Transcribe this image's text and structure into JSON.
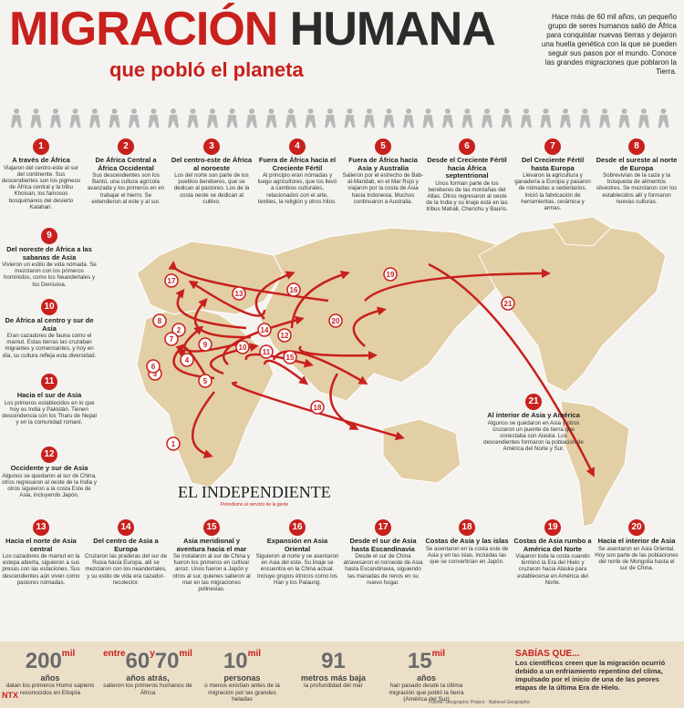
{
  "header": {
    "title_1": "MIGRACIÓN",
    "title_2": "HUMANA",
    "subtitle": "que pobló el planeta",
    "intro": "Hace más de 60 mil años, un pequeño grupo de seres humanos salió de África para conquistar nuevas tierras y dejaron una huella genética con la que se pueden seguir sus pasos por el mundo. Conoce las grandes migraciones que poblaron la Tierra."
  },
  "routes": [
    {
      "number": "1",
      "title": "A través de África",
      "text": "Viajaron del centro-este al sur del continente. Sus descendientes son los pigmeos de África central y la tribu Khoisan, los famosos bosquimanos del desierto Kalahari."
    },
    {
      "number": "2",
      "title": "De África Central a África Occidental",
      "text": "Sus descendientes son los Bantú, una cultura agrícola avanzada y los primeros en en trabajar el hierro. Se extendieron al este y al sur."
    },
    {
      "number": "3",
      "title": "Del centro-este de África al noroeste",
      "text": "Los del norte son parte de los pueblos bereberes, que se dedican al pastoreo. Los de la costa oeste se dedican al cultivo."
    },
    {
      "number": "4",
      "title": "Fuera de África hacia el Creciente Fértil",
      "text": "Al principio eran nómadas y luego agricultores, que los llevó a cambios culturales, relacionados con el arte, textiles, la religión y otros hitos."
    },
    {
      "number": "5",
      "title": "Fuera de África hacia Asia y Australia",
      "text": "Salieron por el estrecho de Bab-al-Mandab, en el Mar Rojo y viajaron por la costa de Asia hacia Indonesia. Muchos continuaron a Australia."
    },
    {
      "number": "6",
      "title": "Desde el Creciente Fértil hacia África septentrional",
      "text": "Unos forman parte de los bereberes de las montañas del Atlas. Otros regresaron al oeste de la India y su linaje está en las tribus Mahali, Chenchu y Bauris."
    },
    {
      "number": "7",
      "title": "Del Creciente Fértil hasta Europa",
      "text": "Llevaron la agricultura y ganadería a Europa y pasaron de nómadas a sedentarios. Inició la fabricación de herramientas, cerámica y armas."
    },
    {
      "number": "8",
      "title": "Desde el sureste al norte de Europa",
      "text": "Sobrevivían de la caza y la búsqueda de alimentos silvestres. Se mezclaron con los establecidos allí y formaron nuevas culturas."
    },
    {
      "number": "9",
      "title": "Del noreste de África a las sabanas de Asia",
      "text": "Vivieron un estilo de vida nómada. Se mezclaron con los primeros homínidos, como los Neandertales y los Denisova."
    },
    {
      "number": "10",
      "title": "De África al centro y sur de Asia",
      "text": "Eran cazadores de fauna como el mamut. Estas tierras las cruzaban migrantes y comerciantes, y hoy en día, su cultura refleja esta diversidad."
    },
    {
      "number": "11",
      "title": "Hacia el sur de Asia",
      "text": "Los primeros establecidos en lo que hoy es India y Pakistán. Tienen descendencia con los Tharu de Nepal y en la comunidad romaní."
    },
    {
      "number": "12",
      "title": "Occidente y sur de Asia",
      "text": "Algunos se quedaron al sur de China, otros regresaron al oeste de la India y otros siguieron a la costa Este de Asia, incluyendo Japón."
    },
    {
      "number": "13",
      "title": "Hacia el norte de Asia central",
      "text": "Los cazadores de mamut en la estepa abierta, siguieron a sus presas con las estaciones. Sus descendientes aún viven como pastores nómadas."
    },
    {
      "number": "14",
      "title": "Del centro de Asia a Europa",
      "text": "Cruzaron las praderas del sur de Rusia hacia Europa, allí se mezclaron con los neandertales, y su estilo de vida era cazador-recolector."
    },
    {
      "number": "15",
      "title": "Asia meridional y aventura hacia el mar",
      "text": "Se instalaron al sur de China y fueron los primeros en cultivar arroz. Unos fueron a Japón y otros al sur, quienes salieron al mar en las migraciones polinesias."
    },
    {
      "number": "16",
      "title": "Expansión en Asia Oriental",
      "text": "Siguieron al norte y se asentaron en Asia del este. Su linaje se encuentra en la China actual. Incluye grupos étnicos como los Han y los Palaung."
    },
    {
      "number": "17",
      "title": "Desde el sur de Asia hasta Escandinavia",
      "text": "Desde el sur de China atravesaron el noroeste de Asia hasta Escandinavia, siguiendo las manadas de renos en su nuevo hogar."
    },
    {
      "number": "18",
      "title": "Costas de Asia y las islas",
      "text": "Se asentaron en la costa este de Asia y en las islas, incluidas las que se convertirían en Japón."
    },
    {
      "number": "19",
      "title": "Costas de Asia rumbo a América del Norte",
      "text": "Viajaron toda la costa cuando terminó la Era del Hielo y cruzaron hacia Alaska para establecerse en América del Norte."
    },
    {
      "number": "20",
      "title": "Hacia el interior de Asia",
      "text": "Se asentaron en Asia Oriental. Hoy son parte de las poblaciones del norte de Mongolia hasta el sur de China."
    },
    {
      "number": "21",
      "title": "Al interior de Asia y América",
      "text": "Algunos se quedaron en Asia y otros cruzaron un puente de tierra que conectaba con Alaska. Los descendientes formaron la población de América del Norte y Sur."
    }
  ],
  "logo": {
    "name": "EL INDEPENDIENTE",
    "tagline": "Periodismo al servicio de la gente"
  },
  "stats": [
    {
      "big": "200",
      "small": "mil",
      "label": "años",
      "text": "datan los primeros Homo sapiens reconocidos en Etiopía"
    },
    {
      "pre": "entre",
      "big": "60",
      "mid": "y",
      "big2": "70",
      "small": "mil",
      "label": "años atrás,",
      "text": "salieron los primeros humanos de África"
    },
    {
      "big": "10",
      "small": "mil",
      "label": "personas",
      "text": "o menos existían antes de la migración por las grandes heladas"
    },
    {
      "big": "91",
      "label": "metros más baja",
      "text": "la profundidad del mar"
    },
    {
      "big": "15",
      "small": "mil",
      "label": "años",
      "text": "han pasado desde la última migración que pobló la tierra (América del Sur)"
    }
  ],
  "fact": {
    "title": "SABÍAS QUE...",
    "text": "Los científicos creen que la migración ocurrió debido a un enfriamiento repentino del clima, impulsado por el inicio de una de las peores etapas de la última Era de Hielo."
  },
  "footer": {
    "brand": "NTX",
    "source": "Fuente: Geographic Project · National Geographic"
  }
}
